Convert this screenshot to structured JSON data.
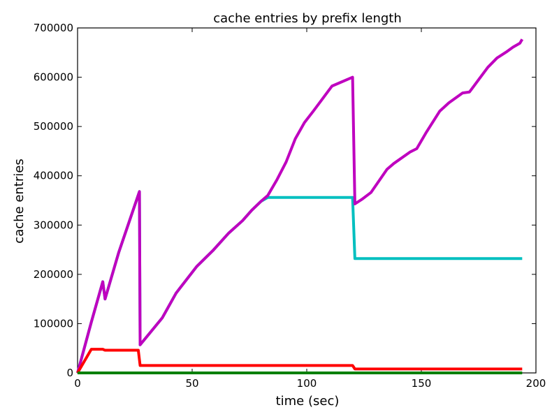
{
  "chart_data": {
    "type": "line",
    "title": "cache entries by prefix length",
    "xlabel": "time (sec)",
    "ylabel": "cache entries",
    "xlim": [
      0,
      200
    ],
    "ylim": [
      0,
      700000
    ],
    "xticks": [
      0,
      50,
      100,
      150,
      200
    ],
    "yticks": [
      0,
      100000,
      200000,
      300000,
      400000,
      500000,
      600000,
      700000
    ],
    "xtick_labels": [
      "0",
      "50",
      "100",
      "150",
      "200"
    ],
    "ytick_labels": [
      "0",
      "100000",
      "200000",
      "300000",
      "400000",
      "500000",
      "600000",
      "700000"
    ],
    "grid": false,
    "legend": false,
    "series": [
      {
        "color": "#00BFBF",
        "points": [
          [
            0,
            0
          ],
          [
            6,
            103000
          ],
          [
            11,
            185000
          ],
          [
            12,
            150000
          ],
          [
            18,
            245000
          ],
          [
            27,
            368000
          ],
          [
            27.3,
            57000
          ],
          [
            34,
            95000
          ],
          [
            37,
            112000
          ],
          [
            43,
            162000
          ],
          [
            52,
            216000
          ],
          [
            59,
            248000
          ],
          [
            66,
            284000
          ],
          [
            72,
            309000
          ],
          [
            76,
            330000
          ],
          [
            80,
            348000
          ],
          [
            83,
            356000
          ],
          [
            88,
            356000
          ],
          [
            100,
            356000
          ],
          [
            110,
            356000
          ],
          [
            120,
            356000
          ],
          [
            121,
            232000
          ],
          [
            150,
            232000
          ],
          [
            180,
            232000
          ],
          [
            194,
            232000
          ]
        ]
      },
      {
        "color": "#BF00BF",
        "points": [
          [
            0,
            0
          ],
          [
            6,
            103000
          ],
          [
            11,
            185000
          ],
          [
            12,
            150000
          ],
          [
            18,
            245000
          ],
          [
            27,
            368000
          ],
          [
            27.3,
            57000
          ],
          [
            34,
            95000
          ],
          [
            37,
            112000
          ],
          [
            43,
            162000
          ],
          [
            52,
            216000
          ],
          [
            59,
            248000
          ],
          [
            66,
            284000
          ],
          [
            72,
            309000
          ],
          [
            76,
            330000
          ],
          [
            80,
            348000
          ],
          [
            83,
            360000
          ],
          [
            87,
            392000
          ],
          [
            91,
            428000
          ],
          [
            95,
            475000
          ],
          [
            99,
            508000
          ],
          [
            103,
            532000
          ],
          [
            107,
            557000
          ],
          [
            111,
            582000
          ],
          [
            115,
            590000
          ],
          [
            120,
            600000
          ],
          [
            121,
            343000
          ],
          [
            124,
            352000
          ],
          [
            128,
            366000
          ],
          [
            135,
            413000
          ],
          [
            138,
            425000
          ],
          [
            145,
            448000
          ],
          [
            148,
            455000
          ],
          [
            152,
            487000
          ],
          [
            158,
            531000
          ],
          [
            162,
            548000
          ],
          [
            168,
            568000
          ],
          [
            171,
            570000
          ],
          [
            175,
            595000
          ],
          [
            179,
            620000
          ],
          [
            183,
            639000
          ],
          [
            187,
            651000
          ],
          [
            190,
            661000
          ],
          [
            193,
            669000
          ],
          [
            194,
            677000
          ]
        ]
      },
      {
        "color": "#FF0000",
        "points": [
          [
            0,
            0
          ],
          [
            6,
            48000
          ],
          [
            11,
            48000
          ],
          [
            12,
            46000
          ],
          [
            26.5,
            46000
          ],
          [
            27.3,
            15000
          ],
          [
            50,
            15000
          ],
          [
            100,
            15000
          ],
          [
            120,
            15000
          ],
          [
            121,
            8000
          ],
          [
            150,
            8000
          ],
          [
            194,
            8000
          ]
        ]
      },
      {
        "color": "#008000",
        "points": [
          [
            0,
            0
          ],
          [
            194,
            0
          ]
        ]
      }
    ]
  }
}
